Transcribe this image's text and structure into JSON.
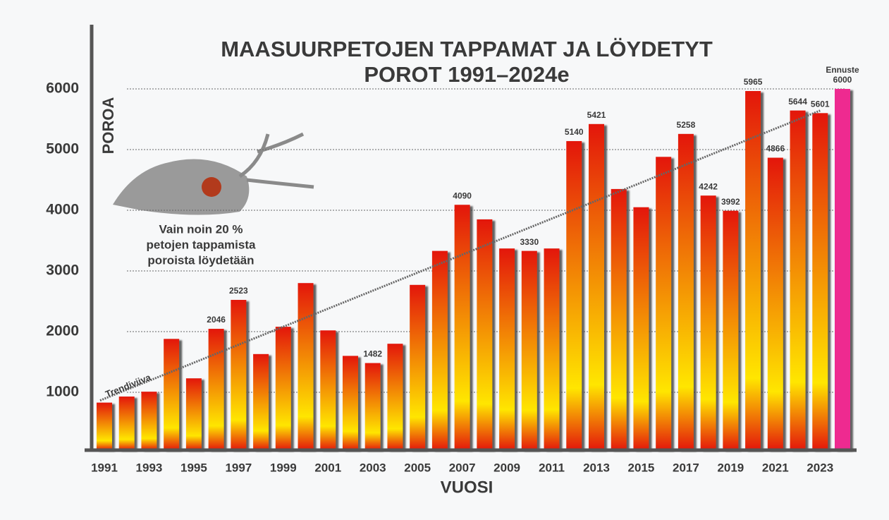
{
  "chart_data": {
    "type": "bar",
    "title": [
      "MAASUURPETOJEN TAPPAMAT JA LÖYDETYT",
      "POROT 1991–2024e"
    ],
    "y_label": "POROA",
    "x_label": "VUOSI",
    "categories": [
      "1991",
      null,
      "1993",
      null,
      "1995",
      null,
      "1997",
      null,
      "1999",
      null,
      "2001",
      null,
      "2003",
      null,
      "2005",
      null,
      "2007",
      null,
      "2009",
      null,
      "2011",
      null,
      "2013",
      null,
      "2015",
      null,
      "2017",
      null,
      "2019",
      null,
      "2021",
      null,
      "2023",
      null
    ],
    "values": [
      830,
      930,
      1010,
      1880,
      1230,
      2046,
      2523,
      1630,
      2080,
      2800,
      2020,
      1600,
      1482,
      1800,
      2770,
      3330,
      4090,
      3850,
      3370,
      3330,
      3370,
      5140,
      5421,
      4350,
      4050,
      4880,
      5258,
      4242,
      3992,
      5965,
      4866,
      5644,
      5601,
      6000
    ],
    "value_labels": [
      null,
      null,
      null,
      null,
      null,
      2046,
      2523,
      null,
      null,
      null,
      null,
      null,
      1482,
      null,
      null,
      null,
      4090,
      null,
      null,
      3330,
      null,
      5140,
      5421,
      null,
      null,
      null,
      5258,
      4242,
      3992,
      5965,
      4866,
      5644,
      5601,
      6000
    ],
    "color": {
      "top": "#e3160b",
      "bottom": "#ffe600"
    },
    "forecast": {
      "label": "Ennuste",
      "color": "#ee2a90"
    },
    "trendline": {
      "label": "Trendiviiva"
    },
    "annotation": [
      "Vain noin 20 %",
      "petojen tappamista",
      "poroista löydetään"
    ],
    "ylim": [
      0,
      7000
    ],
    "yticks": [
      1000,
      2000,
      3000,
      4000,
      5000,
      6000
    ],
    "grid": true
  }
}
